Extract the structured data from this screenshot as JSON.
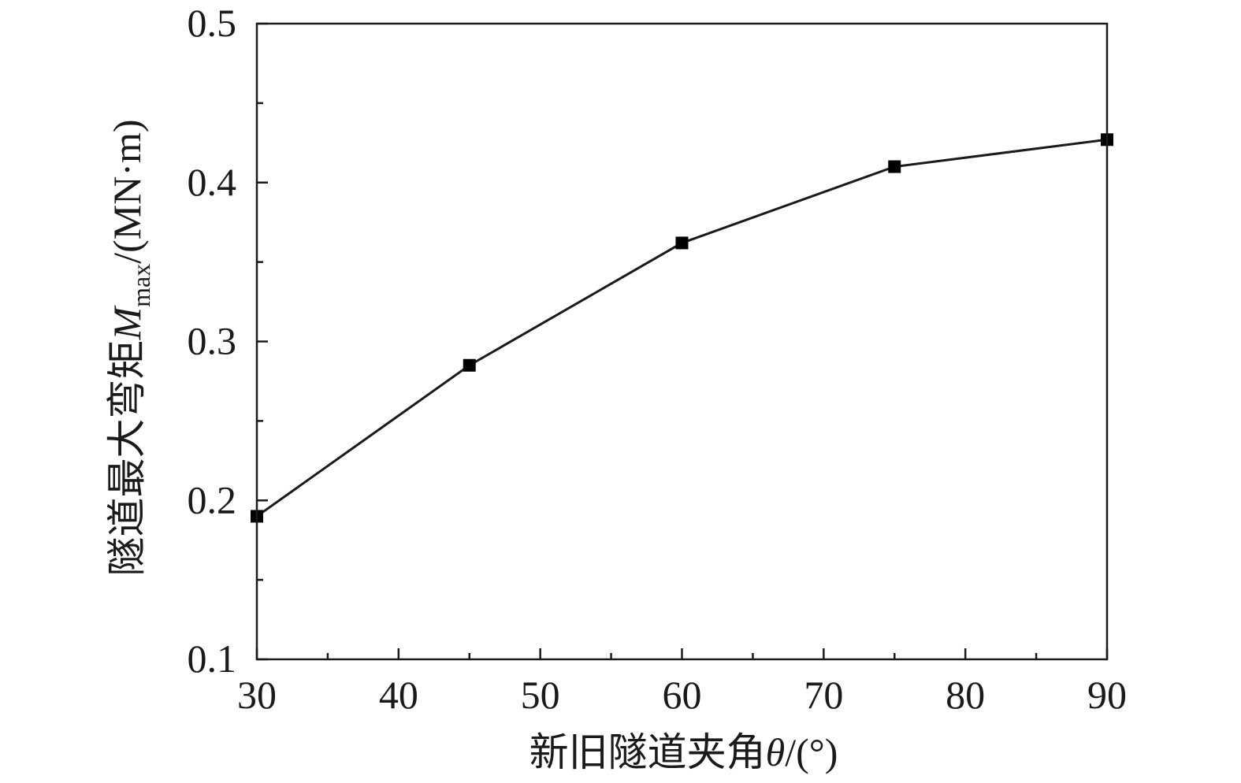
{
  "chart_data": {
    "type": "line",
    "title": "",
    "xlabel": {
      "prefix": "新旧隧道夹角",
      "symbol": "θ",
      "unit": "/(°)"
    },
    "ylabel": {
      "prefix": "隧道最大弯矩",
      "symbol": "M",
      "subscript": "max",
      "unit": "/(MN·m)"
    },
    "xlim": [
      30,
      90
    ],
    "ylim": [
      0.1,
      0.5
    ],
    "x_major_ticks": [
      30,
      40,
      50,
      60,
      70,
      80,
      90
    ],
    "x_tick_labels": [
      "30",
      "40",
      "50",
      "60",
      "70",
      "80",
      "90"
    ],
    "x_minor_ticks": [
      35,
      45,
      55,
      65,
      75,
      85
    ],
    "y_major_ticks": [
      0.1,
      0.2,
      0.3,
      0.4,
      0.5
    ],
    "y_tick_labels": [
      "0.1",
      "0.2",
      "0.3",
      "0.4",
      "0.5"
    ],
    "y_minor_ticks": [
      0.15,
      0.25,
      0.35,
      0.45
    ],
    "grid": false,
    "legend": "none",
    "marker": "square",
    "color": "#000000",
    "series": [
      {
        "x": [
          30,
          45,
          60,
          75,
          90
        ],
        "values": [
          0.19,
          0.285,
          0.362,
          0.41,
          0.427
        ]
      }
    ]
  }
}
